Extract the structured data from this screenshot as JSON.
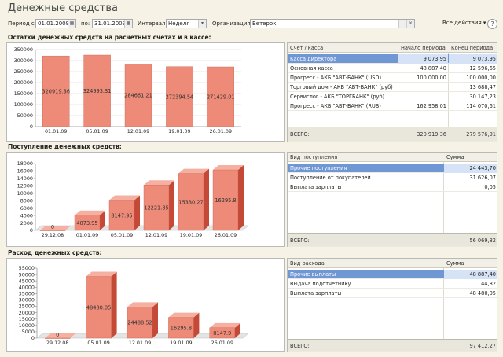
{
  "window": {
    "title": "Денежные средства",
    "help_label": "?",
    "actions_label": "Все действия ▾"
  },
  "filters": {
    "period_from_label": "Период с:",
    "period_from": "01.01.2009",
    "period_to_label": "по:",
    "period_to": "31.01.2009",
    "interval_label": "Интервал:",
    "interval": "Неделя",
    "org_label": "Организация:",
    "org": "Ветерок",
    "calendar_icon": "calendar-icon",
    "select_icon": "ellipsis-icon",
    "clear_icon": "clear-icon"
  },
  "colors": {
    "bar_front": "#ee8a78",
    "bar_side": "#c44a37",
    "bar_top": "#f6b0a2",
    "selection": "#6f97d4",
    "background": "#f6f3e6"
  },
  "sections": {
    "balances": {
      "title": "Остатки денежных средств на расчетных счетах и в кассе:",
      "table": {
        "headers": [
          "Счет / касса",
          "Начало периода",
          "Конец периода"
        ],
        "rows": [
          {
            "name": "Касса директора",
            "start": "9 073,95",
            "end": "9 073,95"
          },
          {
            "name": "Основная касса",
            "start": "48 887,40",
            "end": "12 596,65"
          },
          {
            "name": "Прогресс - АКБ \"АВТ-БАНК\" (USD)",
            "start": "100 000,00",
            "end": "100 000,00"
          },
          {
            "name": "Торговый дом - АКБ \"АВТ-БАНК\" (руб)",
            "start": "",
            "end": "13 688,47"
          },
          {
            "name": "Сервислог - АКБ \"ТОРГБАНК\" (руб)",
            "start": "",
            "end": "30 147,23"
          },
          {
            "name": "Прогресс - АКБ \"АВТ-БАНК\" (RUB)",
            "start": "162 958,01",
            "end": "114 070,61"
          }
        ],
        "total_label": "ВСЕГО:",
        "total_start": "320 919,36",
        "total_end": "279 576,91"
      }
    },
    "income": {
      "title": "Поступление денежных средств:",
      "table": {
        "headers": [
          "Вид поступления",
          "Сумма"
        ],
        "rows": [
          {
            "name": "Прочие поступления",
            "sum": "24 443,70"
          },
          {
            "name": "Поступление от покупателей",
            "sum": "31 626,07"
          },
          {
            "name": "Выплата зарплаты",
            "sum": "0,05"
          }
        ],
        "total_label": "ВСЕГО:",
        "total": "56 069,82"
      }
    },
    "expense": {
      "title": "Расход денежных средств:",
      "table": {
        "headers": [
          "Вид расхода",
          "Сумма"
        ],
        "rows": [
          {
            "name": "Прочие выплаты",
            "sum": "48 887,40"
          },
          {
            "name": "Выдача подотчетнику",
            "sum": "44,82"
          },
          {
            "name": "Выплата зарплаты",
            "sum": "48 480,05"
          }
        ],
        "total_label": "ВСЕГО:",
        "total": "97 412,27"
      }
    }
  },
  "chart_data": [
    {
      "type": "bar",
      "categories": [
        "01.01.09",
        "05.01.09",
        "12.01.09",
        "19.01.09",
        "26.01.09"
      ],
      "values": [
        320919.36,
        324993.31,
        284661.21,
        272394.54,
        271429.01
      ],
      "data_labels": [
        "320919.36",
        "324993.31",
        "284661.21",
        "272394.54",
        "271429.01"
      ],
      "ylim": [
        0,
        350000
      ],
      "yticks": [
        "0",
        "50000",
        "100000",
        "150000",
        "200000",
        "250000",
        "300000",
        "350000"
      ],
      "style": "3d"
    },
    {
      "type": "bar",
      "categories": [
        "29.12.08",
        "01.01.09",
        "05.01.09",
        "12.01.09",
        "19.01.09",
        "26.01.09"
      ],
      "values": [
        0,
        4073.95,
        8147.95,
        12221.85,
        15330.27,
        16295.8
      ],
      "data_labels": [
        "0",
        "4073.95",
        "8147.95",
        "12221.85",
        "15330.27",
        "16295.8"
      ],
      "ylim": [
        0,
        18000
      ],
      "yticks": [
        "0",
        "2000",
        "4000",
        "6000",
        "8000",
        "10000",
        "12000",
        "14000",
        "16000",
        "18000"
      ],
      "style": "3d"
    },
    {
      "type": "bar",
      "categories": [
        "29.12.08",
        "05.01.09",
        "12.01.09",
        "19.01.09",
        "26.01.09"
      ],
      "values": [
        0,
        48480.05,
        24488.52,
        16295.8,
        8147.9
      ],
      "data_labels": [
        "0",
        "48480.05",
        "24488.52",
        "16295.8",
        "8147.9"
      ],
      "ylim": [
        0,
        55000
      ],
      "yticks": [
        "0",
        "5000",
        "10000",
        "15000",
        "20000",
        "25000",
        "30000",
        "35000",
        "40000",
        "45000",
        "50000",
        "55000"
      ],
      "style": "3d"
    }
  ]
}
